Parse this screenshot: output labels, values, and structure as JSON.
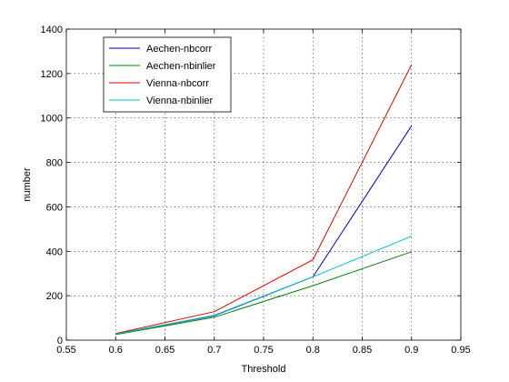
{
  "chart_data": {
    "type": "line",
    "title": "",
    "xlabel": "Threshold",
    "ylabel": "number",
    "xlim": [
      0.55,
      0.95
    ],
    "ylim": [
      0,
      1400
    ],
    "xticks": [
      0.55,
      0.6,
      0.65,
      0.7,
      0.75,
      0.8,
      0.85,
      0.9,
      0.95
    ],
    "xtick_labels": [
      "0.55",
      "0.6",
      "0.65",
      "0.7",
      "0.75",
      "0.8",
      "0.85",
      "0.9",
      "0.95"
    ],
    "yticks": [
      0,
      200,
      400,
      600,
      800,
      1000,
      1200,
      1400
    ],
    "ytick_labels": [
      "0",
      "200",
      "400",
      "600",
      "800",
      "1000",
      "1200",
      "1400"
    ],
    "grid": true,
    "legend_position": "top-left",
    "x": [
      0.6,
      0.7,
      0.8,
      0.9
    ],
    "series": [
      {
        "name": "Aechen-nbcorr",
        "color": "#0000bf",
        "values": [
          28,
          110,
          285,
          965
        ]
      },
      {
        "name": "Aechen-nbinlier",
        "color": "#008000",
        "values": [
          25,
          103,
          245,
          398
        ]
      },
      {
        "name": "Vienna-nbcorr",
        "color": "#e00000",
        "values": [
          30,
          128,
          362,
          1240
        ]
      },
      {
        "name": "Vienna-nbinlier",
        "color": "#00bfbf",
        "values": [
          27,
          112,
          285,
          468
        ]
      }
    ]
  }
}
